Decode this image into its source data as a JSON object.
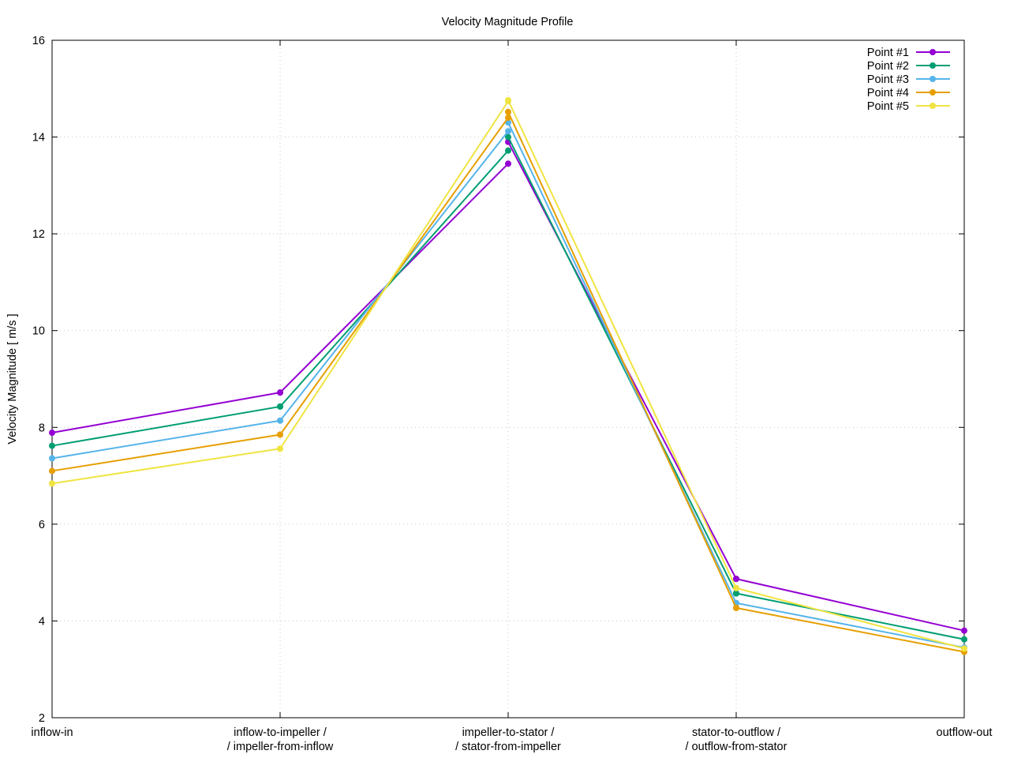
{
  "chart_data": {
    "type": "line",
    "title": "Velocity Magnitude Profile",
    "xlabel": "",
    "ylabel": "Velocity Magnitude [ m/s ]",
    "categories": [
      [
        "inflow-in"
      ],
      [
        "inflow-to-impeller /",
        "/ impeller-from-inflow"
      ],
      [
        "impeller-to-stator /",
        "/ stator-from-impeller"
      ],
      [
        "stator-to-outflow /",
        "/ outflow-from-stator"
      ],
      [
        "outflow-out"
      ]
    ],
    "ylim": [
      2,
      16
    ],
    "yticks": [
      2,
      4,
      6,
      8,
      10,
      12,
      14,
      16
    ],
    "grid": true,
    "legend": "top-right",
    "segments": [
      {
        "series_index": 0,
        "from": 0,
        "to": 1
      },
      {
        "series_index": 1,
        "from": 1,
        "to": 2
      },
      {
        "series_index": 2,
        "from": 2,
        "to": 3
      },
      {
        "series_index": 3,
        "from": 3,
        "to": 4
      }
    ],
    "series": [
      {
        "name": "Point #1",
        "color": "#9400d3",
        "points": [
          [
            7.89,
            8.72
          ],
          [
            8.72,
            13.45
          ],
          [
            13.9,
            4.87
          ],
          [
            4.87,
            3.8
          ]
        ]
      },
      {
        "name": "Point #2",
        "color": "#009e73",
        "points": [
          [
            7.62,
            8.43
          ],
          [
            8.43,
            13.72
          ],
          [
            14.0,
            4.57
          ],
          [
            4.57,
            3.62
          ]
        ]
      },
      {
        "name": "Point #3",
        "color": "#56b4e9",
        "points": [
          [
            7.36,
            8.14
          ],
          [
            8.14,
            14.12
          ],
          [
            14.3,
            4.37
          ],
          [
            4.37,
            3.45
          ]
        ]
      },
      {
        "name": "Point #4",
        "color": "#e69f00",
        "points": [
          [
            7.1,
            7.85
          ],
          [
            7.85,
            14.4
          ],
          [
            14.52,
            4.27
          ],
          [
            4.27,
            3.36
          ]
        ]
      },
      {
        "name": "Point #5",
        "color": "#f0e442",
        "points": [
          [
            6.84,
            7.56
          ],
          [
            7.56,
            14.74
          ],
          [
            14.76,
            4.68
          ],
          [
            4.68,
            3.43
          ]
        ]
      }
    ]
  }
}
